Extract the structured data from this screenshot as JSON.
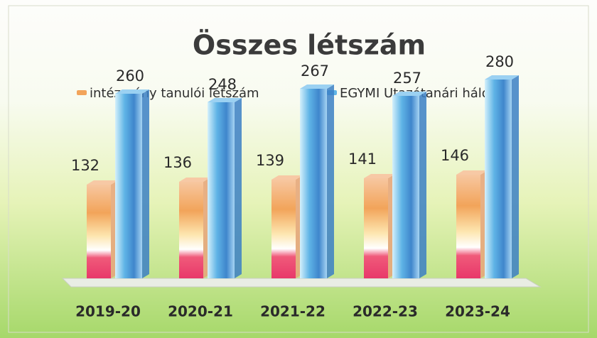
{
  "chart_data": {
    "type": "bar",
    "title": "Összes létszám",
    "categories": [
      "2019-20",
      "2020-21",
      "2021-22",
      "2022-23",
      "2023-24"
    ],
    "series": [
      {
        "name": "intézmény tanulói létszám",
        "color": "#f2a45a",
        "values": [
          132,
          136,
          139,
          141,
          146
        ]
      },
      {
        "name": "EGYMI Utazótanári hálózat",
        "color": "#5fb4e6",
        "values": [
          260,
          248,
          267,
          257,
          280
        ]
      }
    ],
    "ylim": [
      0,
      300
    ],
    "legend": "top"
  }
}
